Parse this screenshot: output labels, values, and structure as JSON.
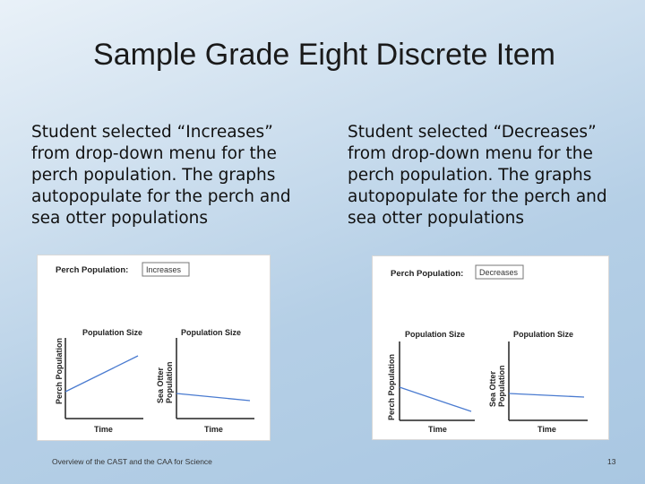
{
  "slide": {
    "title": "Sample Grade Eight Discrete Item",
    "left_text": "Student selected “Increases” from drop-down menu for the perch population. The graphs autopopulate for the perch and sea otter populations",
    "right_text": "Student selected “Decreases” from drop-down menu for the perch population. The graphs autopopulate for the perch and sea otter populations",
    "footer": "Overview of the CAST and the CAA for Science",
    "page_number": "13"
  },
  "figure_left": {
    "dropdown_label": "Perch Population:",
    "dropdown_value": "Increases",
    "graph1_title": "Population Size",
    "graph1_ylabel": "Perch Population",
    "graph1_xlabel": "Time",
    "graph2_title": "Population Size",
    "graph2_ylabel_1": "Sea Otter",
    "graph2_ylabel_2": "Population",
    "graph2_xlabel": "Time",
    "line_color": "#4a7bd0"
  },
  "figure_right": {
    "dropdown_label": "Perch Population:",
    "dropdown_value": "Decreases",
    "graph1_title": "Population Size",
    "graph1_ylabel": "Perch Population",
    "graph1_xlabel": "Time",
    "graph2_title": "Population Size",
    "graph2_ylabel_1": "Sea Otter",
    "graph2_ylabel_2": "Population",
    "graph2_xlabel": "Time",
    "line_color": "#4a7bd0"
  },
  "chart_data": [
    {
      "type": "line",
      "title": "Population Size",
      "ylabel": "Perch Population",
      "xlabel": "Time",
      "trend": "increases"
    },
    {
      "type": "line",
      "title": "Population Size",
      "ylabel": "Sea Otter Population",
      "xlabel": "Time",
      "trend": "decreases"
    },
    {
      "type": "line",
      "title": "Population Size",
      "ylabel": "Perch Population",
      "xlabel": "Time",
      "trend": "decreases"
    },
    {
      "type": "line",
      "title": "Population Size",
      "ylabel": "Sea Otter Population",
      "xlabel": "Time",
      "trend": "slightly decreases"
    }
  ]
}
